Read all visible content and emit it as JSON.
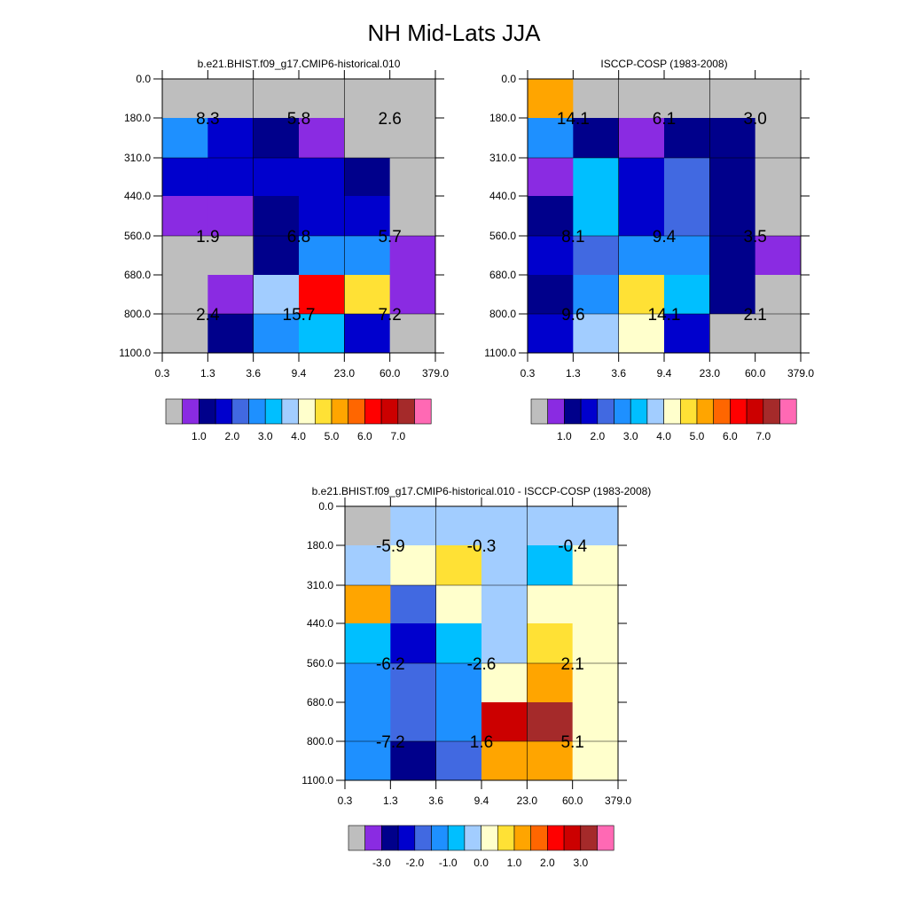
{
  "title": "NH Mid-Lats JJA",
  "y_tick_labels": [
    "0.0",
    "180.0",
    "310.0",
    "440.0",
    "560.0",
    "680.0",
    "800.0",
    "1100.0"
  ],
  "x_tick_labels": [
    "0.3",
    "1.3",
    "3.6",
    "9.4",
    "23.0",
    "60.0",
    "379.0"
  ],
  "chart_data": [
    {
      "type": "heatmap",
      "title": "b.e21.BHIST.f09_g17.CMIP6-historical.010",
      "colorbar_colors": [
        "#bebebe",
        "#8a2be2",
        "#00008b",
        "#0000cd",
        "#4169e1",
        "#1e90ff",
        "#00bfff",
        "#a2cdff",
        "#ffffcc",
        "#ffe135",
        "#ffa500",
        "#ff6600",
        "#ff0000",
        "#cc0000",
        "#a52a2a",
        "#ff69b4"
      ],
      "colorbar_labels": [
        "1.0",
        "2.0",
        "3.0",
        "4.0",
        "5.0",
        "6.0",
        "7.0"
      ],
      "cells": [
        [
          "#bebebe",
          "#bebebe",
          "#bebebe",
          "#bebebe",
          "#bebebe",
          "#bebebe"
        ],
        [
          "#1e90ff",
          "#0000cd",
          "#00008b",
          "#8a2be2",
          "#bebebe",
          "#bebebe"
        ],
        [
          "#0000cd",
          "#0000cd",
          "#0000cd",
          "#0000cd",
          "#00008b",
          "#bebebe"
        ],
        [
          "#8a2be2",
          "#8a2be2",
          "#00008b",
          "#0000cd",
          "#0000cd",
          "#bebebe"
        ],
        [
          "#bebebe",
          "#bebebe",
          "#00008b",
          "#1e90ff",
          "#1e90ff",
          "#8a2be2"
        ],
        [
          "#bebebe",
          "#8a2be2",
          "#a2cdff",
          "#ff0000",
          "#ffe135",
          "#8a2be2"
        ],
        [
          "#bebebe",
          "#00008b",
          "#1e90ff",
          "#00bfff",
          "#0000cd",
          "#bebebe"
        ]
      ],
      "annotations": [
        {
          "text": "8.3",
          "col": 1,
          "row": 1
        },
        {
          "text": "5.8",
          "col": 3,
          "row": 1
        },
        {
          "text": "2.6",
          "col": 5,
          "row": 1
        },
        {
          "text": "1.9",
          "col": 1,
          "row": 4
        },
        {
          "text": "6.8",
          "col": 3,
          "row": 4
        },
        {
          "text": "5.7",
          "col": 5,
          "row": 4
        },
        {
          "text": "2.4",
          "col": 1,
          "row": 6
        },
        {
          "text": "15.7",
          "col": 3,
          "row": 6
        },
        {
          "text": "7.2",
          "col": 5,
          "row": 6
        }
      ]
    },
    {
      "type": "heatmap",
      "title": "ISCCP-COSP (1983-2008)",
      "colorbar_colors": [
        "#bebebe",
        "#8a2be2",
        "#00008b",
        "#0000cd",
        "#4169e1",
        "#1e90ff",
        "#00bfff",
        "#a2cdff",
        "#ffffcc",
        "#ffe135",
        "#ffa500",
        "#ff6600",
        "#ff0000",
        "#cc0000",
        "#a52a2a",
        "#ff69b4"
      ],
      "colorbar_labels": [
        "1.0",
        "2.0",
        "3.0",
        "4.0",
        "5.0",
        "6.0",
        "7.0"
      ],
      "cells": [
        [
          "#ffa500",
          "#bebebe",
          "#bebebe",
          "#bebebe",
          "#bebebe",
          "#bebebe"
        ],
        [
          "#1e90ff",
          "#00008b",
          "#8a2be2",
          "#00008b",
          "#00008b",
          "#bebebe"
        ],
        [
          "#8a2be2",
          "#00bfff",
          "#0000cd",
          "#4169e1",
          "#00008b",
          "#bebebe"
        ],
        [
          "#00008b",
          "#00bfff",
          "#0000cd",
          "#4169e1",
          "#00008b",
          "#bebebe"
        ],
        [
          "#0000cd",
          "#4169e1",
          "#1e90ff",
          "#1e90ff",
          "#00008b",
          "#8a2be2"
        ],
        [
          "#00008b",
          "#1e90ff",
          "#ffe135",
          "#00bfff",
          "#00008b",
          "#bebebe"
        ],
        [
          "#0000cd",
          "#a2cdff",
          "#ffffcc",
          "#0000cd",
          "#bebebe",
          "#bebebe"
        ]
      ],
      "annotations": [
        {
          "text": "14.1",
          "col": 1,
          "row": 1
        },
        {
          "text": "6.1",
          "col": 3,
          "row": 1
        },
        {
          "text": "3.0",
          "col": 5,
          "row": 1
        },
        {
          "text": "8.1",
          "col": 1,
          "row": 4
        },
        {
          "text": "9.4",
          "col": 3,
          "row": 4
        },
        {
          "text": "3.5",
          "col": 5,
          "row": 4
        },
        {
          "text": "9.6",
          "col": 1,
          "row": 6
        },
        {
          "text": "14.1",
          "col": 3,
          "row": 6
        },
        {
          "text": "2.1",
          "col": 5,
          "row": 6
        }
      ]
    },
    {
      "type": "heatmap",
      "title": "b.e21.BHIST.f09_g17.CMIP6-historical.010 - ISCCP-COSP (1983-2008)",
      "colorbar_colors": [
        "#bebebe",
        "#8a2be2",
        "#00008b",
        "#0000cd",
        "#4169e1",
        "#1e90ff",
        "#00bfff",
        "#a2cdff",
        "#ffffcc",
        "#ffe135",
        "#ffa500",
        "#ff6600",
        "#ff0000",
        "#cc0000",
        "#a52a2a",
        "#ff69b4"
      ],
      "colorbar_labels": [
        "-3.0",
        "-2.0",
        "-1.0",
        "0.0",
        "1.0",
        "2.0",
        "3.0"
      ],
      "cells": [
        [
          "#bebebe",
          "#a2cdff",
          "#a2cdff",
          "#a2cdff",
          "#a2cdff",
          "#a2cdff"
        ],
        [
          "#a2cdff",
          "#ffffcc",
          "#ffe135",
          "#a2cdff",
          "#00bfff",
          "#ffffcc"
        ],
        [
          "#ffa500",
          "#4169e1",
          "#ffffcc",
          "#a2cdff",
          "#ffffcc",
          "#ffffcc"
        ],
        [
          "#00bfff",
          "#0000cd",
          "#00bfff",
          "#a2cdff",
          "#ffe135",
          "#ffffcc"
        ],
        [
          "#1e90ff",
          "#4169e1",
          "#1e90ff",
          "#ffffcc",
          "#ffa500",
          "#ffffcc"
        ],
        [
          "#1e90ff",
          "#4169e1",
          "#1e90ff",
          "#cc0000",
          "#a52a2a",
          "#ffffcc"
        ],
        [
          "#1e90ff",
          "#00008b",
          "#4169e1",
          "#ffa500",
          "#ffa500",
          "#ffffcc"
        ]
      ],
      "annotations": [
        {
          "text": "-5.9",
          "col": 1,
          "row": 1
        },
        {
          "text": "-0.3",
          "col": 3,
          "row": 1
        },
        {
          "text": "-0.4",
          "col": 5,
          "row": 1
        },
        {
          "text": "-6.2",
          "col": 1,
          "row": 4
        },
        {
          "text": "-2.6",
          "col": 3,
          "row": 4
        },
        {
          "text": "2.1",
          "col": 5,
          "row": 4
        },
        {
          "text": "-7.2",
          "col": 1,
          "row": 6
        },
        {
          "text": "1.6",
          "col": 3,
          "row": 6
        },
        {
          "text": "5.1",
          "col": 5,
          "row": 6
        }
      ]
    }
  ]
}
